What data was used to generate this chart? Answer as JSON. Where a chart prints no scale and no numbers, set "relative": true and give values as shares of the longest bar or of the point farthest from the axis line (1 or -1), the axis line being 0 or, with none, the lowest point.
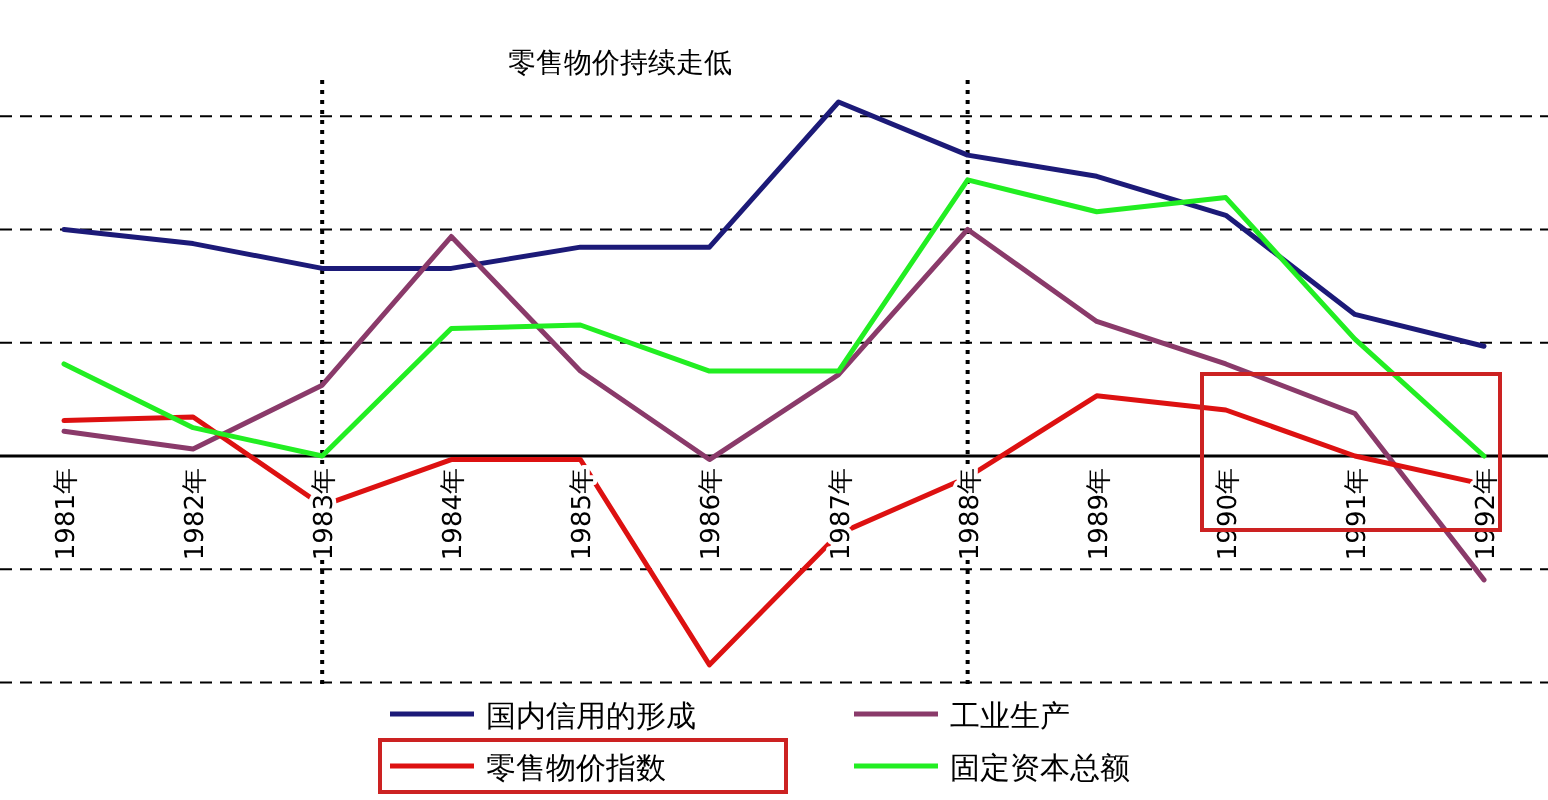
{
  "chart_data": {
    "type": "line",
    "title": "零售物价持续走低",
    "relative": true,
    "categories": [
      "1981年",
      "1982年",
      "1983年",
      "1984年",
      "1985年",
      "1986年",
      "1987年",
      "1988年",
      "1989年",
      "1990年",
      "1991年",
      "1992年"
    ],
    "series": [
      {
        "name": "国内信用的形成",
        "color": "#1c1a78",
        "values": [
          0.64,
          0.6,
          0.53,
          0.53,
          0.59,
          0.59,
          1.0,
          0.85,
          0.79,
          0.68,
          0.4,
          0.31
        ]
      },
      {
        "name": "工业生产",
        "color": "#8a3a6a",
        "values": [
          0.07,
          0.02,
          0.2,
          0.62,
          0.24,
          -0.01,
          0.23,
          0.64,
          0.38,
          0.26,
          0.12,
          -0.35
        ]
      },
      {
        "name": "零售物价指数",
        "color": "#dd1111",
        "values": [
          0.1,
          0.11,
          -0.14,
          -0.01,
          -0.01,
          -0.59,
          -0.22,
          -0.06,
          0.17,
          0.13,
          0.0,
          -0.08
        ]
      },
      {
        "name": "固定资本总额",
        "color": "#22ee22",
        "values": [
          0.26,
          0.08,
          0.0,
          0.36,
          0.37,
          0.24,
          0.24,
          0.78,
          0.69,
          0.73,
          0.33,
          0.0
        ]
      }
    ],
    "ref_lines": [
      {
        "axis": "y",
        "value": 0.96,
        "color": "#000000",
        "line_style": "dashed"
      },
      {
        "axis": "y",
        "value": 0.64,
        "color": "#000000",
        "line_style": "dashed"
      },
      {
        "axis": "y",
        "value": 0.32,
        "color": "#000000",
        "line_style": "dashed"
      },
      {
        "axis": "y",
        "value": -0.32,
        "color": "#000000",
        "line_style": "dashed"
      },
      {
        "axis": "y",
        "value": -0.64,
        "color": "#000000",
        "line_style": "dashed"
      },
      {
        "axis": "x",
        "value": "1983年",
        "color": "#000000",
        "line_style": "dotted"
      },
      {
        "axis": "x",
        "value": "1988年",
        "color": "#000000",
        "line_style": "dotted"
      }
    ],
    "legend": "bottom"
  }
}
